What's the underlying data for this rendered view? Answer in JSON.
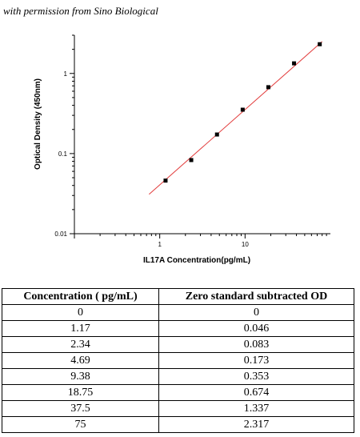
{
  "permission_note": "with permission from Sino Biological",
  "chart_data": {
    "type": "scatter",
    "x_scale": "log",
    "y_scale": "log",
    "xlabel": "IL17A  Concentration(pg/mL)",
    "ylabel": "Optical Density (450nm)",
    "xlim": [
      0.1,
      100
    ],
    "ylim": [
      0.01,
      3
    ],
    "x_ticks": [
      {
        "value": 1,
        "label": "1"
      },
      {
        "value": 10,
        "label": "10"
      }
    ],
    "y_ticks": [
      {
        "value": 0.01,
        "label": "0.01"
      },
      {
        "value": 0.1,
        "label": "0.1"
      },
      {
        "value": 1,
        "label": "1"
      }
    ],
    "points": {
      "x": [
        1.17,
        2.34,
        4.69,
        9.38,
        18.75,
        37.5,
        75
      ],
      "y": [
        0.046,
        0.083,
        0.173,
        0.353,
        0.674,
        1.337,
        2.317
      ]
    },
    "fit_line": {
      "x": [
        0.75,
        80
      ],
      "y": [
        0.031,
        2.5
      ],
      "color": "#e23b3b"
    },
    "marker_color": "#000000"
  },
  "table": {
    "headers": [
      "Concentration ( pg/mL)",
      "Zero standard subtracted OD"
    ],
    "rows": [
      [
        "0",
        "0"
      ],
      [
        "1.17",
        "0.046"
      ],
      [
        "2.34",
        "0.083"
      ],
      [
        "4.69",
        "0.173"
      ],
      [
        "9.38",
        "0.353"
      ],
      [
        "18.75",
        "0.674"
      ],
      [
        "37.5",
        "1.337"
      ],
      [
        "75",
        "2.317"
      ]
    ]
  }
}
